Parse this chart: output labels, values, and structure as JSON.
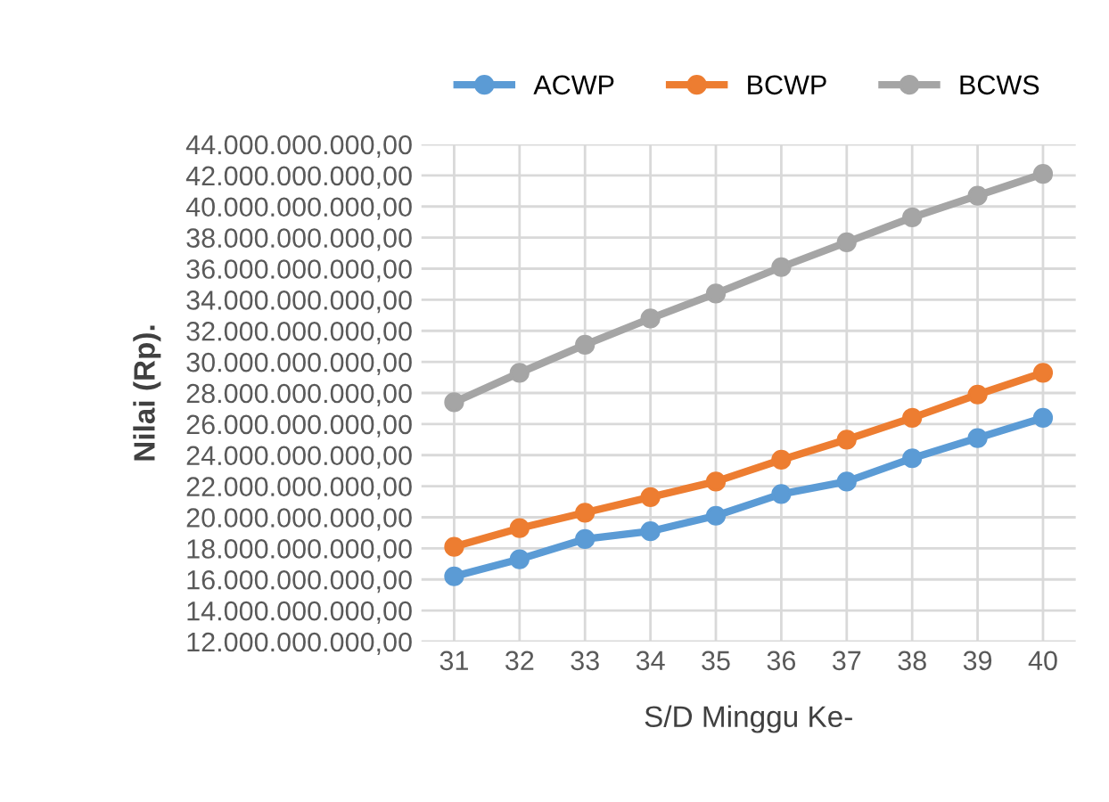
{
  "chart_data": {
    "type": "line",
    "xlabel": "S/D Minggu Ke-",
    "ylabel": "Nilai (Rp).",
    "categories": [
      "31",
      "32",
      "33",
      "34",
      "35",
      "36",
      "37",
      "38",
      "39",
      "40"
    ],
    "series": [
      {
        "name": "ACWP",
        "color": "#5b9bd5",
        "values": [
          16200000000,
          17300000000,
          18600000000,
          19100000000,
          20100000000,
          21500000000,
          22300000000,
          23800000000,
          25100000000,
          26400000000
        ]
      },
      {
        "name": "BCWP",
        "color": "#ed7d31",
        "values": [
          18100000000,
          19300000000,
          20300000000,
          21300000000,
          22300000000,
          23700000000,
          25000000000,
          26400000000,
          27900000000,
          29300000000
        ]
      },
      {
        "name": "BCWS",
        "color": "#a5a5a5",
        "values": [
          27400000000,
          29300000000,
          31100000000,
          32800000000,
          34400000000,
          36100000000,
          37700000000,
          39300000000,
          40700000000,
          42100000000
        ]
      }
    ],
    "ylim": [
      12000000000,
      44000000000
    ],
    "yticks": [
      {
        "value": 12000000000,
        "label": "12.000.000.000,00"
      },
      {
        "value": 14000000000,
        "label": "14.000.000.000,00"
      },
      {
        "value": 16000000000,
        "label": "16.000.000.000,00"
      },
      {
        "value": 18000000000,
        "label": "18.000.000.000,00"
      },
      {
        "value": 20000000000,
        "label": "20.000.000.000,00"
      },
      {
        "value": 22000000000,
        "label": "22.000.000.000,00"
      },
      {
        "value": 24000000000,
        "label": "24.000.000.000,00"
      },
      {
        "value": 26000000000,
        "label": "26.000.000.000,00"
      },
      {
        "value": 28000000000,
        "label": "28.000.000.000,00"
      },
      {
        "value": 30000000000,
        "label": "30.000.000.000,00"
      },
      {
        "value": 32000000000,
        "label": "32.000.000.000,00"
      },
      {
        "value": 34000000000,
        "label": "34.000.000.000,00"
      },
      {
        "value": 36000000000,
        "label": "36.000.000.000,00"
      },
      {
        "value": 38000000000,
        "label": "38.000.000.000,00"
      },
      {
        "value": 40000000000,
        "label": "40.000.000.000,00"
      },
      {
        "value": 42000000000,
        "label": "42.000.000.000,00"
      },
      {
        "value": 44000000000,
        "label": "44.000.000.000,00"
      }
    ],
    "grid": true,
    "legend": "top",
    "marker": "circle",
    "line_style": "solid"
  }
}
